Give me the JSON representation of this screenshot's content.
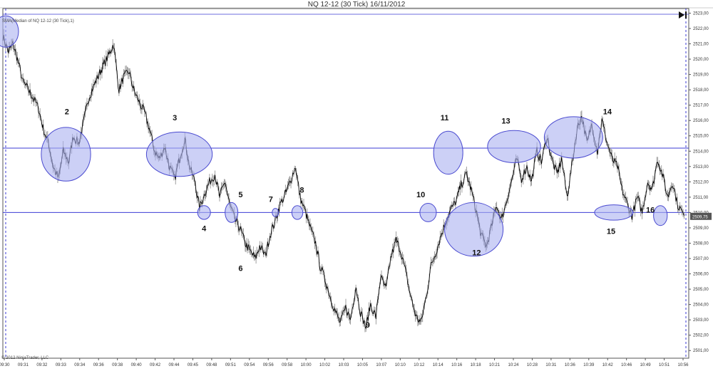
{
  "window": {
    "title": "NQ 12-12 (30 Tick)  16/11/2012",
    "series_label": "SMA(Median of NQ 12-12 (30 Tick),1)",
    "copyright": "© 2012 NinjaTrader, LLC",
    "price_marker": "2509,75"
  },
  "colors": {
    "background": "#ffffff",
    "price_line": "#000000",
    "wick": "#888888",
    "horizontal_level": "#3b3bd4",
    "ellipse_fill": "#aab0f0",
    "ellipse_stroke": "#4a4ad0",
    "session_line": "#3b3bd4",
    "axis": "#555555"
  },
  "chart_data": {
    "type": "line",
    "title": "NQ 12-12 (30 Tick)  16/11/2012",
    "ylim": [
      2500.5,
      2523.3
    ],
    "y_ticks": [
      "2501,00",
      "2502,00",
      "2503,00",
      "2504,00",
      "2505,00",
      "2506,00",
      "2507,00",
      "2508,00",
      "2509,00",
      "2510,00",
      "2511,00",
      "2512,00",
      "2513,00",
      "2514,00",
      "2515,00",
      "2516,00",
      "2517,00",
      "2518,00",
      "2519,00",
      "2520,00",
      "2521,00",
      "2522,00",
      "2523,00"
    ],
    "x_ticks": [
      "09:30",
      "09:31",
      "09:32",
      "09:33",
      "09:34",
      "09:36",
      "09:38",
      "09:40",
      "09:42",
      "09:44",
      "09:45",
      "09:48",
      "09:51",
      "09:54",
      "09:56",
      "09:58",
      "10:00",
      "10:02",
      "10:03",
      "10:05",
      "10:07",
      "10:10",
      "10:12",
      "10:14",
      "10:16",
      "10:18",
      "10:21",
      "10:24",
      "10:28",
      "10:31",
      "10:36",
      "10:39",
      "10:42",
      "10:46",
      "10:49",
      "10:51",
      "10:56"
    ],
    "horizontal_levels": [
      2514.2,
      2510.0
    ],
    "price_points": [
      [
        0,
        2521.5
      ],
      [
        0.6,
        2520.5
      ],
      [
        1.1,
        2521.0
      ],
      [
        1.6,
        2520.0
      ],
      [
        2.2,
        2518.5
      ],
      [
        2.8,
        2518.0
      ],
      [
        3.3,
        2517.5
      ],
      [
        3.9,
        2516.8
      ],
      [
        4.4,
        2515.5
      ],
      [
        5.0,
        2514.5
      ],
      [
        5.5,
        2513.0
      ],
      [
        6.1,
        2512.2
      ],
      [
        6.6,
        2514.0
      ],
      [
        7.2,
        2513.3
      ],
      [
        7.7,
        2515.0
      ],
      [
        8.3,
        2514.5
      ],
      [
        8.8,
        2515.8
      ],
      [
        9.4,
        2517.5
      ],
      [
        9.9,
        2518.2
      ],
      [
        10.5,
        2519.0
      ],
      [
        11.0,
        2519.6
      ],
      [
        11.6,
        2520.3
      ],
      [
        12.1,
        2521.0
      ],
      [
        12.7,
        2518.0
      ],
      [
        13.2,
        2518.8
      ],
      [
        13.8,
        2519.2
      ],
      [
        14.3,
        2518.0
      ],
      [
        14.9,
        2517.2
      ],
      [
        15.5,
        2516.5
      ],
      [
        16.0,
        2515.5
      ],
      [
        16.6,
        2514.0
      ],
      [
        17.1,
        2513.5
      ],
      [
        17.7,
        2514.3
      ],
      [
        18.2,
        2513.0
      ],
      [
        18.8,
        2512.2
      ],
      [
        19.3,
        2513.5
      ],
      [
        19.9,
        2514.8
      ],
      [
        20.4,
        2513.0
      ],
      [
        21.0,
        2512.0
      ],
      [
        21.5,
        2510.3
      ],
      [
        22.1,
        2511.3
      ],
      [
        22.6,
        2512.0
      ],
      [
        23.2,
        2512.5
      ],
      [
        23.7,
        2511.0
      ],
      [
        24.3,
        2512.0
      ],
      [
        24.8,
        2510.5
      ],
      [
        25.4,
        2509.5
      ],
      [
        25.9,
        2509.0
      ],
      [
        26.5,
        2508.0
      ],
      [
        27.0,
        2507.5
      ],
      [
        27.6,
        2507.0
      ],
      [
        28.1,
        2507.8
      ],
      [
        28.7,
        2507.2
      ],
      [
        29.2,
        2508.5
      ],
      [
        29.8,
        2509.5
      ],
      [
        30.3,
        2510.5
      ],
      [
        30.9,
        2511.2
      ],
      [
        31.4,
        2512.0
      ],
      [
        32.0,
        2513.0
      ],
      [
        32.5,
        2511.0
      ],
      [
        33.1,
        2510.0
      ],
      [
        33.6,
        2509.0
      ],
      [
        34.2,
        2508.0
      ],
      [
        34.7,
        2506.5
      ],
      [
        35.3,
        2505.5
      ],
      [
        35.8,
        2504.5
      ],
      [
        36.4,
        2503.5
      ],
      [
        36.9,
        2502.8
      ],
      [
        37.5,
        2503.8
      ],
      [
        38.0,
        2503.0
      ],
      [
        38.6,
        2505.2
      ],
      [
        39.1,
        2503.5
      ],
      [
        39.7,
        2502.5
      ],
      [
        40.2,
        2504.0
      ],
      [
        40.8,
        2503.2
      ],
      [
        41.3,
        2505.8
      ],
      [
        41.9,
        2505.0
      ],
      [
        42.4,
        2507.0
      ],
      [
        43.0,
        2508.2
      ],
      [
        43.5,
        2507.5
      ],
      [
        44.1,
        2506.0
      ],
      [
        44.6,
        2504.5
      ],
      [
        45.2,
        2503.2
      ],
      [
        45.7,
        2502.8
      ],
      [
        46.3,
        2504.5
      ],
      [
        46.8,
        2506.5
      ],
      [
        47.4,
        2507.5
      ],
      [
        47.9,
        2508.5
      ],
      [
        48.5,
        2509.5
      ],
      [
        49.0,
        2510.2
      ],
      [
        49.6,
        2510.8
      ],
      [
        50.1,
        2511.8
      ],
      [
        50.7,
        2512.5
      ],
      [
        51.2,
        2511.5
      ],
      [
        51.8,
        2510.0
      ],
      [
        52.3,
        2508.5
      ],
      [
        52.9,
        2507.8
      ],
      [
        53.4,
        2509.0
      ],
      [
        54.0,
        2510.5
      ],
      [
        54.5,
        2509.5
      ],
      [
        55.1,
        2510.8
      ],
      [
        55.6,
        2512.0
      ],
      [
        56.2,
        2513.5
      ],
      [
        56.7,
        2512.2
      ],
      [
        57.3,
        2513.0
      ],
      [
        57.8,
        2512.0
      ],
      [
        58.4,
        2514.0
      ],
      [
        58.9,
        2513.3
      ],
      [
        59.5,
        2515.0
      ],
      [
        60.0,
        2513.5
      ],
      [
        60.6,
        2512.5
      ],
      [
        61.1,
        2513.5
      ],
      [
        61.7,
        2511.0
      ],
      [
        62.2,
        2513.0
      ],
      [
        62.8,
        2515.5
      ],
      [
        63.3,
        2516.3
      ],
      [
        63.9,
        2514.5
      ],
      [
        64.4,
        2515.8
      ],
      [
        65.0,
        2514.0
      ],
      [
        65.5,
        2516.0
      ],
      [
        66.1,
        2514.5
      ],
      [
        66.6,
        2513.5
      ],
      [
        67.2,
        2513.0
      ],
      [
        67.7,
        2511.5
      ],
      [
        68.3,
        2510.5
      ],
      [
        68.8,
        2509.8
      ],
      [
        69.4,
        2511.0
      ],
      [
        69.9,
        2510.0
      ],
      [
        70.5,
        2512.0
      ],
      [
        71.0,
        2511.5
      ],
      [
        71.6,
        2513.5
      ],
      [
        72.1,
        2512.5
      ],
      [
        72.7,
        2511.0
      ],
      [
        73.2,
        2512.0
      ],
      [
        73.8,
        2510.5
      ],
      [
        74.5,
        2509.8
      ]
    ],
    "x_range": [
      0,
      75
    ],
    "annotations": [
      {
        "label": "2",
        "cx": 6.9,
        "cy": 2513.8,
        "rx": 2.7,
        "ry": 1.75
      },
      {
        "label": "3",
        "cx": 19.3,
        "cy": 2513.8,
        "rx": 3.6,
        "ry": 1.45
      },
      {
        "label": "4",
        "cx": 22.0,
        "cy": 2510.0,
        "rx": 0.7,
        "ry": 0.45
      },
      {
        "label": "5",
        "cx": 25.0,
        "cy": 2510.0,
        "rx": 0.7,
        "ry": 0.65
      },
      {
        "label": "7",
        "cx": 29.8,
        "cy": 2510.0,
        "rx": 0.35,
        "ry": 0.27
      },
      {
        "label": "8",
        "cx": 32.2,
        "cy": 2510.0,
        "rx": 0.6,
        "ry": 0.45
      },
      {
        "label": "10",
        "cx": 46.5,
        "cy": 2510.0,
        "rx": 0.9,
        "ry": 0.6
      },
      {
        "label": "11",
        "cx": 48.7,
        "cy": 2513.9,
        "rx": 1.6,
        "ry": 1.4
      },
      {
        "label": "12",
        "cx": 51.5,
        "cy": 2508.9,
        "rx": 3.2,
        "ry": 1.75
      },
      {
        "label": "13",
        "cx": 55.9,
        "cy": 2514.3,
        "rx": 2.9,
        "ry": 1.05
      },
      {
        "label": "14",
        "cx": 62.4,
        "cy": 2514.9,
        "rx": 3.2,
        "ry": 1.35
      },
      {
        "label": "15",
        "cx": 66.8,
        "cy": 2510.0,
        "rx": 2.1,
        "ry": 0.5
      },
      {
        "label": "16",
        "cx": 71.9,
        "cy": 2509.8,
        "rx": 0.75,
        "ry": 0.65
      }
    ],
    "labels": [
      {
        "text": "2",
        "x": 7.0,
        "y": 2516.4
      },
      {
        "text": "3",
        "x": 18.8,
        "y": 2516.0
      },
      {
        "text": "4",
        "x": 22.0,
        "y": 2508.8
      },
      {
        "text": "5",
        "x": 26.0,
        "y": 2511.0
      },
      {
        "text": "6",
        "x": 26.0,
        "y": 2506.2
      },
      {
        "text": "7",
        "x": 29.3,
        "y": 2510.7
      },
      {
        "text": "8",
        "x": 32.7,
        "y": 2511.3
      },
      {
        "text": "9",
        "x": 39.9,
        "y": 2502.5
      },
      {
        "text": "10",
        "x": 45.7,
        "y": 2511.0
      },
      {
        "text": "11",
        "x": 48.3,
        "y": 2516.0
      },
      {
        "text": "12",
        "x": 51.8,
        "y": 2507.2
      },
      {
        "text": "13",
        "x": 55.0,
        "y": 2515.8
      },
      {
        "text": "14",
        "x": 66.1,
        "y": 2516.4
      },
      {
        "text": "15",
        "x": 66.5,
        "y": 2508.6
      },
      {
        "text": "16",
        "x": 70.8,
        "y": 2510.0
      }
    ]
  }
}
